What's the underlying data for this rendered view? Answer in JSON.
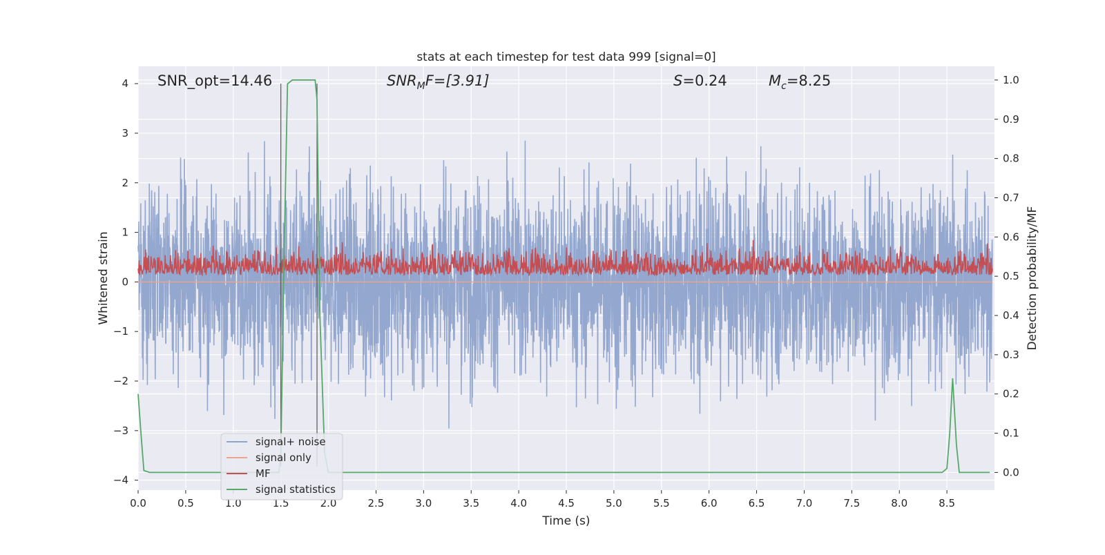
{
  "chart_data": {
    "type": "line",
    "title": "stats at each timestep for test data 999 [signal=0]",
    "xlabel": "Time (s)",
    "ylabel": "Whitened strain",
    "y2label": "Detection probability/MF",
    "xlim": [
      0.0,
      9.0
    ],
    "ylim": [
      -4.2,
      4.35
    ],
    "y2lim": [
      -0.045,
      1.035
    ],
    "xticks": [
      "0.0",
      "0.5",
      "1.0",
      "1.5",
      "2.0",
      "2.5",
      "3.0",
      "3.5",
      "4.0",
      "4.5",
      "5.0",
      "5.5",
      "6.0",
      "6.5",
      "7.0",
      "7.5",
      "8.0",
      "8.5"
    ],
    "xtick_values": [
      0.0,
      0.5,
      1.0,
      1.5,
      2.0,
      2.5,
      3.0,
      3.5,
      4.0,
      4.5,
      5.0,
      5.5,
      6.0,
      6.5,
      7.0,
      7.5,
      8.0,
      8.5
    ],
    "yticks": [
      "4",
      "3",
      "2",
      "1",
      "0",
      "−1",
      "−2",
      "−3",
      "−4"
    ],
    "ytick_values": [
      4,
      3,
      2,
      1,
      0,
      -1,
      -2,
      -3,
      -4
    ],
    "y2ticks": [
      "1.0",
      "0.9",
      "0.8",
      "0.7",
      "0.6",
      "0.5",
      "0.4",
      "0.3",
      "0.2",
      "0.1",
      "0.0"
    ],
    "y2tick_values": [
      1.0,
      0.9,
      0.8,
      0.7,
      0.6,
      0.5,
      0.4,
      0.3,
      0.2,
      0.1,
      0.0
    ],
    "grid": true,
    "legend_position": "lower-left",
    "annotations": {
      "snr_opt": "SNR_opt=14.46",
      "snr_mf_main": "SNR",
      "snr_mf_sub": "M",
      "snr_mf_rest": "F=[3.91]",
      "s_italic": "S",
      "s_rest": "=0.24",
      "mc_main": "M",
      "mc_sub": "c",
      "mc_rest": "=8.25"
    },
    "vlines": [
      1.5,
      1.88
    ],
    "series": [
      {
        "name": "signal+ noise",
        "color": "#8ea3cc",
        "axis": "left",
        "description_values": {
          "sample_rate_hz": 1024,
          "approx_min": -3.7,
          "approx_max": 4.0
        }
      },
      {
        "name": "signal only",
        "color": "#eaa58c",
        "axis": "left",
        "values_constant": 0.0
      },
      {
        "name": "MF",
        "color": "#c44e52",
        "axis": "right",
        "approx_range": [
          0.5,
          0.6
        ]
      },
      {
        "name": "signal statistics",
        "color": "#55a868",
        "axis": "right",
        "x": [
          0.0,
          0.03,
          0.06,
          0.12,
          1.48,
          1.5,
          1.53,
          1.57,
          1.62,
          1.86,
          1.88,
          1.91,
          1.96,
          2.0,
          2.05,
          8.45,
          8.5,
          8.53,
          8.56,
          8.6,
          8.63,
          8.95
        ],
        "values": [
          0.2,
          0.1,
          0.005,
          0.0,
          0.0,
          0.05,
          0.5,
          0.99,
          1.0,
          1.0,
          0.95,
          0.4,
          0.05,
          0.0,
          0.0,
          0.0,
          0.01,
          0.1,
          0.24,
          0.07,
          0.0,
          0.0
        ]
      }
    ]
  }
}
